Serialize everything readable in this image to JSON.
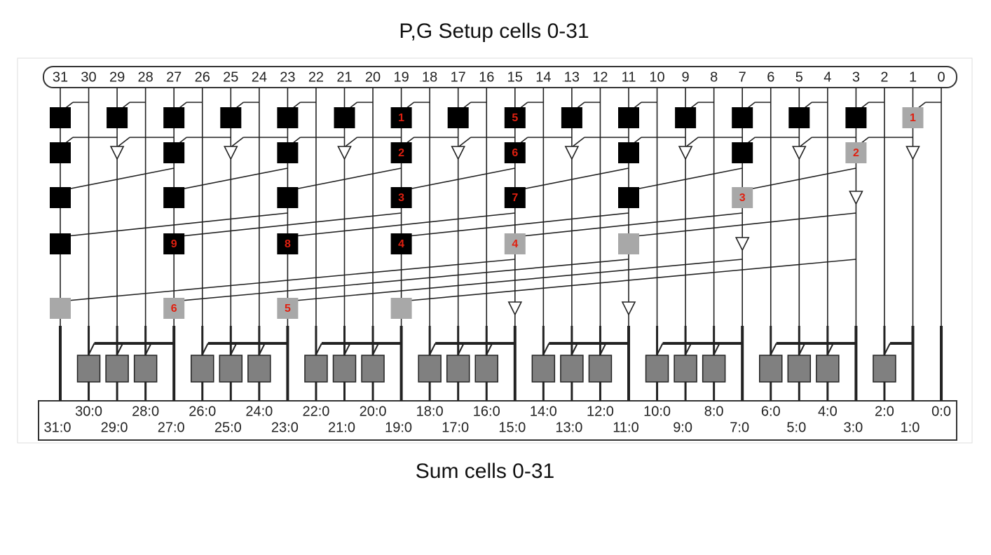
{
  "title": "P,G Setup cells 0-31",
  "footer": "Sum cells 0-31",
  "bits": [
    "31",
    "30",
    "29",
    "28",
    "27",
    "26",
    "25",
    "24",
    "23",
    "22",
    "21",
    "20",
    "19",
    "18",
    "17",
    "16",
    "15",
    "14",
    "13",
    "12",
    "11",
    "10",
    "9",
    "8",
    "7",
    "6",
    "5",
    "4",
    "3",
    "2",
    "1",
    "0"
  ],
  "cells": [
    "1",
    "5",
    "1",
    "2",
    "6",
    "2",
    "3",
    "7",
    "3",
    "9",
    "8",
    "4",
    "4",
    "6",
    "5"
  ],
  "outputs": [
    "31:0",
    "30:0",
    "29:0",
    "28:0",
    "27:0",
    "26:0",
    "25:0",
    "24:0",
    "23:0",
    "22:0",
    "21:0",
    "20:0",
    "19:0",
    "18:0",
    "17:0",
    "16:0",
    "15:0",
    "14:0",
    "13:0",
    "12:0",
    "11:0",
    "10:0",
    "9:0",
    "8:0",
    "7:0",
    "6:0",
    "5:0",
    "4:0",
    "3:0",
    "2:0",
    "1:0",
    "0:0"
  ]
}
